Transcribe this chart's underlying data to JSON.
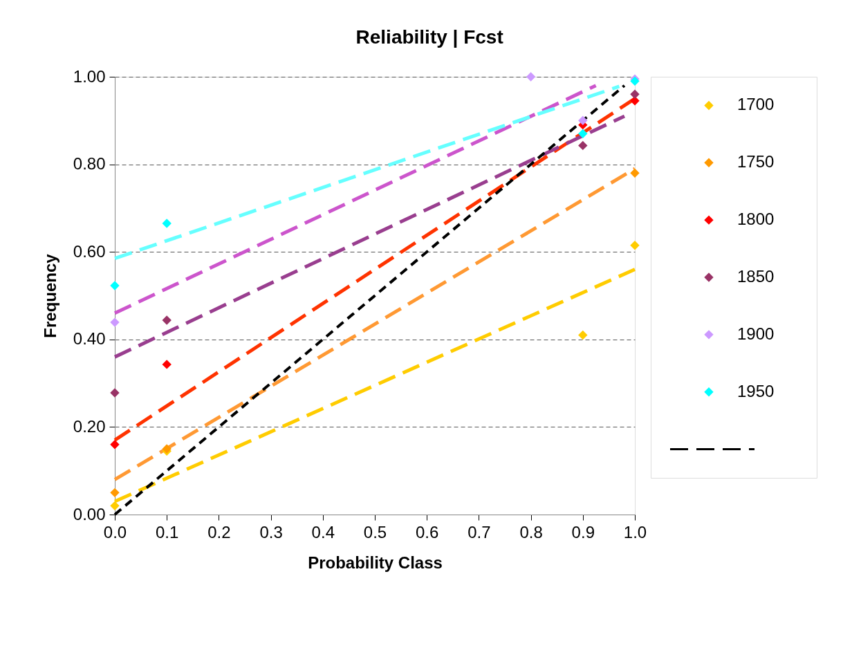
{
  "chart_data": {
    "type": "scatter",
    "title": "Reliability | Fcst",
    "xlabel": "Probability Class",
    "ylabel": "Frequency",
    "xlim": [
      0,
      1
    ],
    "ylim": [
      0,
      1
    ],
    "xticks": [
      {
        "value": 0,
        "label": "0.0"
      },
      {
        "value": 0.1,
        "label": "0.1"
      },
      {
        "value": 0.2,
        "label": "0.2"
      },
      {
        "value": 0.3,
        "label": "0.3"
      },
      {
        "value": 0.4,
        "label": "0.4"
      },
      {
        "value": 0.5,
        "label": "0.5"
      },
      {
        "value": 0.6,
        "label": "0.6"
      },
      {
        "value": 0.7,
        "label": "0.7"
      },
      {
        "value": 0.8,
        "label": "0.8"
      },
      {
        "value": 0.9,
        "label": "0.9"
      },
      {
        "value": 1,
        "label": "1.0"
      }
    ],
    "yticks": [
      {
        "value": 0,
        "label": "0.00"
      },
      {
        "value": 0.2,
        "label": "0.20"
      },
      {
        "value": 0.4,
        "label": "0.40"
      },
      {
        "value": 0.6,
        "label": "0.60"
      },
      {
        "value": 0.8,
        "label": "0.80"
      },
      {
        "value": 1,
        "label": "1.00"
      }
    ],
    "grid": "y",
    "legend": "right",
    "marker": "diamond",
    "series": [
      {
        "name": "1700",
        "color": "#ffcc00",
        "x": [
          0,
          0.1,
          0.9,
          1
        ],
        "values": [
          0.02,
          0.145,
          0.41,
          0.615
        ]
      },
      {
        "name": "1750",
        "color": "#ff9900",
        "x": [
          0,
          0.1,
          1
        ],
        "values": [
          0.05,
          0.15,
          0.78
        ]
      },
      {
        "name": "1800",
        "color": "#ff0000",
        "x": [
          0,
          0.1,
          0.9,
          1
        ],
        "values": [
          0.16,
          0.343,
          0.89,
          0.945
        ]
      },
      {
        "name": "1850",
        "color": "#993366",
        "x": [
          0,
          0.1,
          0.9,
          1
        ],
        "values": [
          0.278,
          0.444,
          0.843,
          0.96
        ]
      },
      {
        "name": "1900",
        "color": "#cc99ff",
        "x": [
          0,
          0.8,
          0.9,
          1
        ],
        "values": [
          0.439,
          1.0,
          0.9,
          0.995
        ]
      },
      {
        "name": "1950",
        "color": "#00ffff",
        "x": [
          0,
          0.1,
          0.9,
          1
        ],
        "values": [
          0.523,
          0.665,
          0.87,
          0.99
        ]
      },
      {
        "type": "line",
        "marker": "none",
        "line_style": "dashed",
        "color": "#ffcc00",
        "x": [
          0,
          1
        ],
        "values": [
          0.03,
          0.56
        ]
      },
      {
        "type": "line",
        "marker": "none",
        "line_style": "dashed",
        "color": "#ff9933",
        "x": [
          0,
          1
        ],
        "values": [
          0.08,
          0.79
        ]
      },
      {
        "type": "line",
        "marker": "none",
        "line_style": "dashed",
        "color": "#ff3300",
        "x": [
          0,
          1
        ],
        "values": [
          0.17,
          0.95
        ]
      },
      {
        "type": "line",
        "marker": "none",
        "line_style": "dashed",
        "color": "#993e8f",
        "x": [
          0,
          0.98
        ],
        "values": [
          0.36,
          0.91
        ]
      },
      {
        "type": "line",
        "marker": "none",
        "line_style": "dashed",
        "color": "#cc55cc",
        "x": [
          0,
          0.925
        ],
        "values": [
          0.46,
          0.98
        ]
      },
      {
        "type": "line",
        "marker": "none",
        "line_style": "dashed",
        "color": "#66ffff",
        "x": [
          0,
          0.97
        ],
        "values": [
          0.585,
          0.978
        ]
      },
      {
        "type": "line",
        "marker": "none",
        "line_style": "dotted",
        "color": "#000000",
        "x": [
          0,
          0.98
        ],
        "values": [
          0,
          0.98
        ]
      }
    ]
  }
}
